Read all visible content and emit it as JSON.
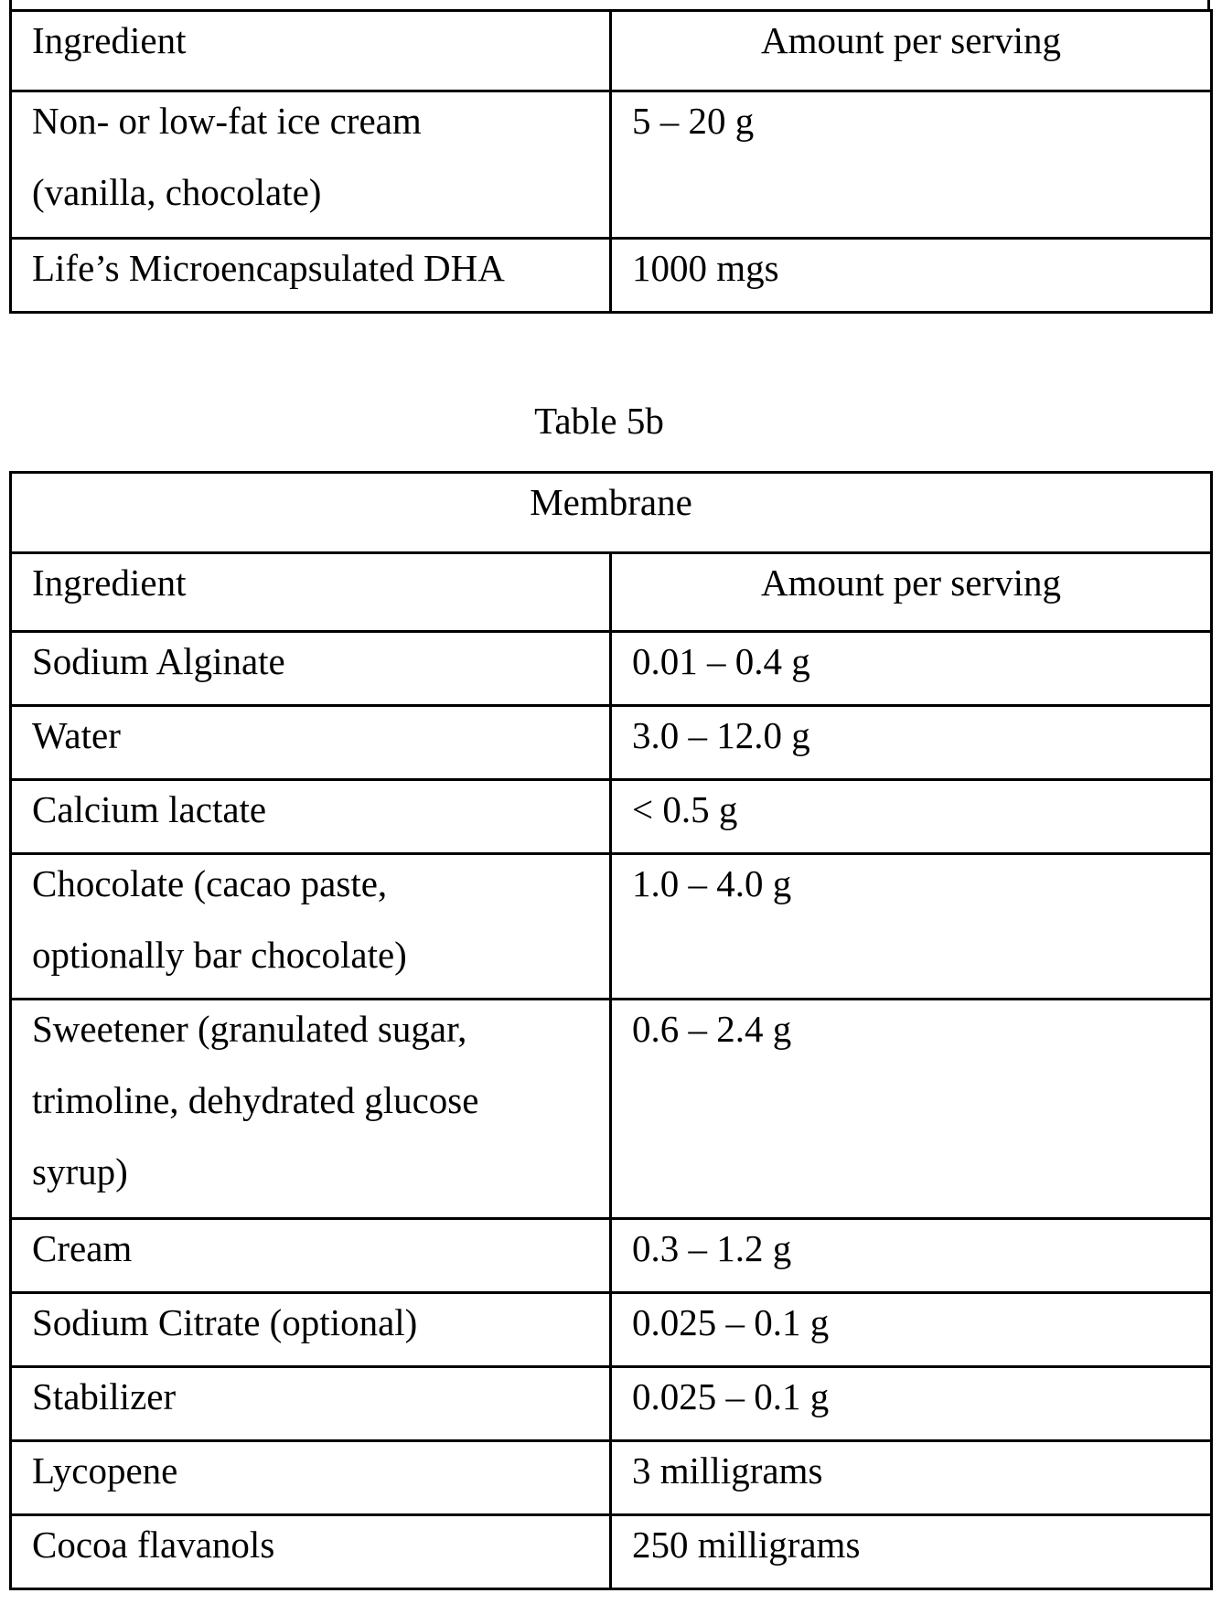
{
  "table_5a": {
    "header": {
      "ingredient": "Ingredient",
      "amount": "Amount per serving"
    },
    "rows": [
      {
        "ingredient": [
          "Non- or low-fat ice cream",
          "(vanilla, chocolate)"
        ],
        "amount": "5 – 20 g"
      },
      {
        "ingredient": [
          "Life’s Microencapsulated DHA"
        ],
        "amount": "1000 mgs"
      }
    ]
  },
  "table_5b": {
    "caption": "Table 5b",
    "section": "Membrane",
    "header": {
      "ingredient": "Ingredient",
      "amount": "Amount per serving"
    },
    "rows": [
      {
        "ingredient": [
          "Sodium Alginate"
        ],
        "amount": "0.01 – 0.4 g"
      },
      {
        "ingredient": [
          "Water"
        ],
        "amount": "3.0 – 12.0 g"
      },
      {
        "ingredient": [
          "Calcium lactate"
        ],
        "amount": "< 0.5 g"
      },
      {
        "ingredient": [
          "Chocolate (cacao paste,",
          "optionally bar chocolate)"
        ],
        "amount": "1.0 – 4.0 g"
      },
      {
        "ingredient": [
          "Sweetener (granulated sugar,",
          "trimoline, dehydrated glucose",
          "syrup)"
        ],
        "amount": "0.6 – 2.4 g"
      },
      {
        "ingredient": [
          "Cream"
        ],
        "amount": "0.3 – 1.2 g"
      },
      {
        "ingredient": [
          "Sodium Citrate (optional)"
        ],
        "amount": "0.025 – 0.1 g"
      },
      {
        "ingredient": [
          "Stabilizer"
        ],
        "amount": "0.025 – 0.1 g"
      },
      {
        "ingredient": [
          "Lycopene"
        ],
        "amount": "3 milligrams"
      },
      {
        "ingredient": [
          "Cocoa flavanols"
        ],
        "amount": "250 milligrams"
      }
    ]
  }
}
